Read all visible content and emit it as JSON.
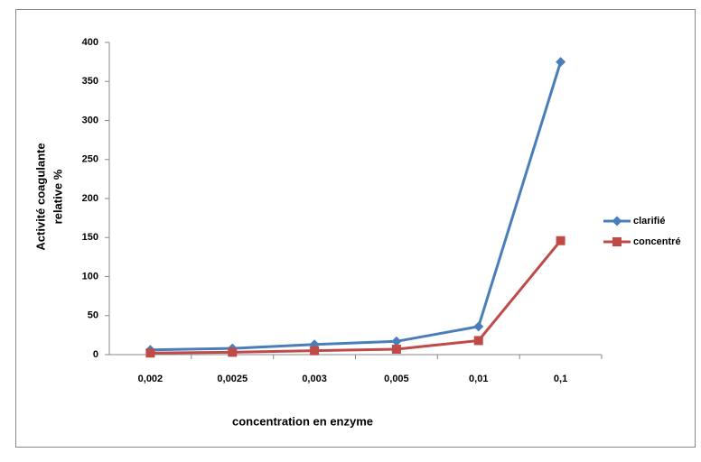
{
  "chart_data": {
    "type": "line",
    "x_label": "concentration en enzyme",
    "y_label": [
      "Activité coagulante",
      "relative %"
    ],
    "categories": [
      "0,002",
      "0,0025",
      "0,003",
      "0,005",
      "0,01",
      "0,1"
    ],
    "series": [
      {
        "name": "clarifié",
        "color": "#4a7ebb",
        "marker": "diamond",
        "values": [
          6,
          8,
          13,
          17,
          36,
          375
        ]
      },
      {
        "name": "concentré",
        "color": "#be4b48",
        "marker": "square",
        "values": [
          2,
          3,
          5,
          7,
          18,
          146
        ]
      }
    ],
    "ylim": [
      0,
      400
    ],
    "yticks": [
      0,
      50,
      100,
      150,
      200,
      250,
      300,
      350,
      400
    ],
    "grid": false,
    "legend": "right"
  }
}
